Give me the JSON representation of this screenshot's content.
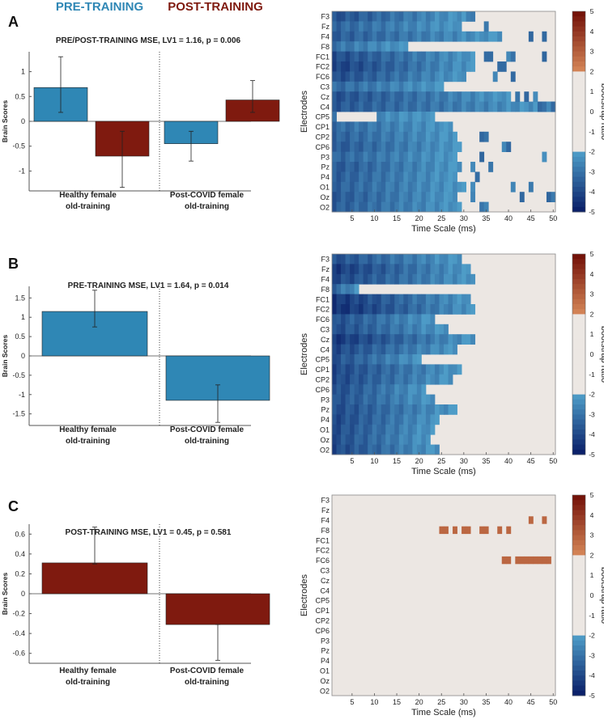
{
  "legend": {
    "pre_label": "PRE-TRAINING",
    "post_label": "POST-TRAINING",
    "pre_color": "#2f87b5",
    "post_color": "#7f1a0f"
  },
  "colorbar": {
    "label": "bootstrap ratio",
    "ticks": [
      "5",
      "4",
      "3",
      "2",
      "1",
      "0",
      "-1",
      "-2",
      "-3",
      "-4",
      "-5"
    ]
  },
  "chart_data": [
    {
      "panel": "A",
      "type": "bar",
      "title": "PRE/POST-TRAINING MSE, LV1 = 1.16, p = 0.006",
      "ylabel": "Brain Scores",
      "ylim": [
        -1.4,
        1.4
      ],
      "yticks": [
        1,
        0.5,
        0,
        -0.5,
        -1
      ],
      "ytick_labels": [
        "1",
        "0.5",
        "0",
        "-0.5",
        "-1"
      ],
      "groups": [
        {
          "label1": "Healthy female",
          "label2": "old-training"
        },
        {
          "label1": "Post-COVID female",
          "label2": "old-training"
        }
      ],
      "bars": [
        {
          "group": 0,
          "series": "pre",
          "value": 0.68,
          "err_low": 0.18,
          "err_high": 1.3
        },
        {
          "group": 0,
          "series": "post",
          "value": -0.7,
          "err_low": -1.33,
          "err_high": -0.2
        },
        {
          "group": 1,
          "series": "pre",
          "value": -0.45,
          "err_low": -0.8,
          "err_high": -0.2
        },
        {
          "group": 1,
          "series": "post",
          "value": 0.43,
          "err_low": 0.18,
          "err_high": 0.82
        }
      ],
      "heatmap": {
        "xlabel": "Time Scale (ms)",
        "ylabel": "Electrodes",
        "electrodes": [
          "F3",
          "Fz",
          "F4",
          "F8",
          "FC1",
          "FC2",
          "FC6",
          "C3",
          "Cz",
          "C4",
          "CP5",
          "CP1",
          "CP2",
          "CP6",
          "P3",
          "Pz",
          "P4",
          "O1",
          "Oz",
          "O2"
        ],
        "xticks": [
          5,
          10,
          15,
          20,
          25,
          30,
          35,
          40,
          45,
          50
        ],
        "xlim": [
          0.5,
          50.5
        ],
        "row_values": [
          [
            -3.8,
            30
          ],
          [
            -3.3,
            29
          ],
          [
            -3.5,
            38
          ],
          [
            -3.0,
            17
          ],
          [
            -3.9,
            32
          ],
          [
            -4.2,
            32
          ],
          [
            -3.9,
            30
          ],
          [
            -3.2,
            25
          ],
          [
            -3.8,
            40
          ],
          [
            -3.6,
            50
          ],
          [
            -2.8,
            23
          ],
          [
            -3.2,
            27
          ],
          [
            -3.4,
            28
          ],
          [
            -3.6,
            29
          ],
          [
            -3.3,
            28
          ],
          [
            -3.6,
            29
          ],
          [
            -3.5,
            28
          ],
          [
            -3.4,
            30
          ],
          [
            -3.6,
            28
          ],
          [
            -3.5,
            29
          ]
        ],
        "gap_cells": [
          [
            10,
            2
          ],
          [
            10,
            3
          ],
          [
            10,
            4
          ],
          [
            10,
            5
          ],
          [
            10,
            6
          ],
          [
            10,
            7
          ],
          [
            10,
            8
          ],
          [
            10,
            9
          ],
          [
            10,
            10
          ]
        ],
        "extra_cells": [
          [
            0,
            31
          ],
          [
            0,
            32
          ],
          [
            1,
            35
          ],
          [
            2,
            45
          ],
          [
            2,
            48
          ],
          [
            4,
            35
          ],
          [
            4,
            36
          ],
          [
            4,
            40
          ],
          [
            4,
            41
          ],
          [
            4,
            48
          ],
          [
            5,
            38
          ],
          [
            5,
            39
          ],
          [
            6,
            37
          ],
          [
            6,
            41
          ],
          [
            8,
            42
          ],
          [
            8,
            44
          ],
          [
            8,
            46
          ],
          [
            9,
            47
          ],
          [
            9,
            48
          ],
          [
            9,
            49
          ],
          [
            9,
            50
          ],
          [
            12,
            34
          ],
          [
            12,
            35
          ],
          [
            13,
            39
          ],
          [
            13,
            40
          ],
          [
            14,
            34
          ],
          [
            14,
            48
          ],
          [
            15,
            32
          ],
          [
            15,
            36
          ],
          [
            16,
            33
          ],
          [
            17,
            32
          ],
          [
            17,
            41
          ],
          [
            17,
            45
          ],
          [
            18,
            32
          ],
          [
            18,
            43
          ],
          [
            18,
            49
          ],
          [
            18,
            50
          ],
          [
            19,
            34
          ],
          [
            19,
            35
          ]
        ]
      }
    },
    {
      "panel": "B",
      "type": "bar",
      "title": "PRE-TRAINING MSE, LV1 = 1.64, p = 0.014",
      "ylabel": "Brain Scores",
      "ylim": [
        -1.8,
        1.8
      ],
      "yticks": [
        1.5,
        1,
        0.5,
        0,
        -0.5,
        -1,
        -1.5
      ],
      "ytick_labels": [
        "1.5",
        "1",
        "0.5",
        "0",
        "-0.5",
        "-1",
        "-1.5"
      ],
      "groups": [
        {
          "label1": "Healthy female",
          "label2": "old-training"
        },
        {
          "label1": "Post-COVID female",
          "label2": "old-training"
        }
      ],
      "bars": [
        {
          "group": 0,
          "series": "pre",
          "value": 1.15,
          "err_low": 0.75,
          "err_high": 1.7
        },
        {
          "group": 1,
          "series": "pre",
          "value": -1.15,
          "err_low": -1.72,
          "err_high": -0.75
        }
      ],
      "heatmap": {
        "xlabel": "Time Scale (ms)",
        "ylabel": "Electrodes",
        "electrodes": [
          "F3",
          "Fz",
          "F4",
          "F8",
          "FC1",
          "FC2",
          "FC6",
          "C3",
          "Cz",
          "C4",
          "CP5",
          "CP1",
          "CP2",
          "CP6",
          "P3",
          "Pz",
          "P4",
          "O1",
          "Oz",
          "O2"
        ],
        "xticks": [
          5,
          10,
          15,
          20,
          25,
          30,
          35,
          40,
          45,
          50
        ],
        "xlim": [
          0.5,
          50.5
        ],
        "row_values": [
          [
            -3.8,
            29
          ],
          [
            -4.3,
            31
          ],
          [
            -4.0,
            32
          ],
          [
            -3.3,
            6
          ],
          [
            -4.4,
            31
          ],
          [
            -4.6,
            32
          ],
          [
            -3.8,
            23
          ],
          [
            -3.9,
            26
          ],
          [
            -4.4,
            32
          ],
          [
            -4.0,
            28
          ],
          [
            -3.8,
            20
          ],
          [
            -4.0,
            29
          ],
          [
            -4.0,
            27
          ],
          [
            -3.9,
            21
          ],
          [
            -3.8,
            23
          ],
          [
            -3.9,
            28
          ],
          [
            -4.0,
            24
          ],
          [
            -3.9,
            23
          ],
          [
            -3.9,
            22
          ],
          [
            -4.0,
            24
          ]
        ],
        "gap_cells": [],
        "extra_cells": []
      }
    },
    {
      "panel": "C",
      "type": "bar",
      "title": "POST-TRAINING MSE, LV1 = 0.45, p = 0.581",
      "ylabel": "Brain Scores",
      "ylim": [
        -0.7,
        0.7
      ],
      "yticks": [
        0.6,
        0.4,
        0.2,
        0,
        -0.2,
        -0.4,
        -0.6
      ],
      "ytick_labels": [
        "0.6",
        "0.4",
        "0.2",
        "0",
        "-0.2",
        "-0.4",
        "-0.6"
      ],
      "groups": [
        {
          "label1": "Healthy female",
          "label2": "old-training"
        },
        {
          "label1": "Post-COVID female",
          "label2": "old-training"
        }
      ],
      "bars": [
        {
          "group": 0,
          "series": "post",
          "value": 0.31,
          "err_low": 0.3,
          "err_high": 0.67
        },
        {
          "group": 1,
          "series": "post",
          "value": -0.31,
          "err_low": -0.67,
          "err_high": -0.31
        }
      ],
      "heatmap": {
        "xlabel": "Time Scale (ms)",
        "ylabel": "Electrodes",
        "electrodes": [
          "F3",
          "Fz",
          "F4",
          "F8",
          "FC1",
          "FC2",
          "FC6",
          "C3",
          "Cz",
          "C4",
          "CP5",
          "CP1",
          "CP2",
          "CP6",
          "P3",
          "Pz",
          "P4",
          "O1",
          "Oz",
          "O2"
        ],
        "xticks": [
          5,
          10,
          15,
          20,
          25,
          30,
          35,
          40,
          45,
          50
        ],
        "xlim": [
          0.5,
          50.5
        ],
        "row_values": [],
        "gap_cells": [],
        "extra_cells": [],
        "positive_cells": [
          [
            2,
            45
          ],
          [
            2,
            48
          ],
          [
            3,
            25
          ],
          [
            3,
            26
          ],
          [
            3,
            28
          ],
          [
            3,
            30
          ],
          [
            3,
            31
          ],
          [
            3,
            34
          ],
          [
            3,
            35
          ],
          [
            3,
            38
          ],
          [
            3,
            40
          ],
          [
            6,
            39
          ],
          [
            6,
            40
          ],
          [
            6,
            42
          ],
          [
            6,
            43
          ],
          [
            6,
            44
          ],
          [
            6,
            45
          ],
          [
            6,
            46
          ],
          [
            6,
            47
          ],
          [
            6,
            48
          ],
          [
            6,
            49
          ]
        ],
        "positive_value": 2.8
      }
    }
  ]
}
